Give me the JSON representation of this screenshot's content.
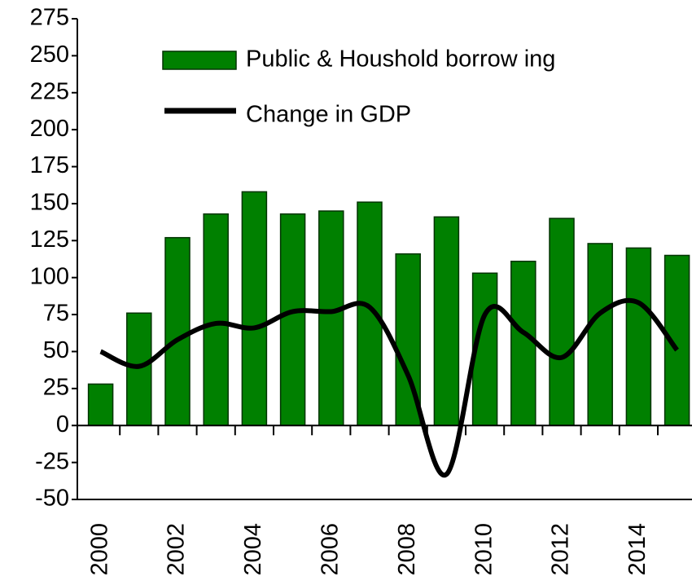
{
  "chart_data": {
    "type": "bar_line",
    "categories": [
      "2000",
      null,
      "2002",
      null,
      "2004",
      null,
      "2006",
      null,
      "2008",
      null,
      "2010",
      null,
      "2012",
      null,
      "2014",
      null
    ],
    "series": [
      {
        "name": "Public & Houshold borrow ing",
        "type": "bar",
        "color": "#008000",
        "values": [
          28,
          76,
          127,
          143,
          158,
          143,
          145,
          151,
          116,
          141,
          103,
          111,
          140,
          123,
          120,
          115
        ]
      },
      {
        "name": "Change in GDP",
        "type": "line",
        "color": "#000000",
        "values": [
          50,
          40,
          58,
          69,
          66,
          77,
          77,
          80,
          34,
          -33,
          75,
          63,
          46,
          76,
          83,
          51
        ]
      }
    ],
    "ylim": [
      -50,
      275
    ],
    "yticks": [
      -50,
      -25,
      0,
      25,
      50,
      75,
      100,
      125,
      150,
      175,
      200,
      225,
      250,
      275
    ]
  }
}
